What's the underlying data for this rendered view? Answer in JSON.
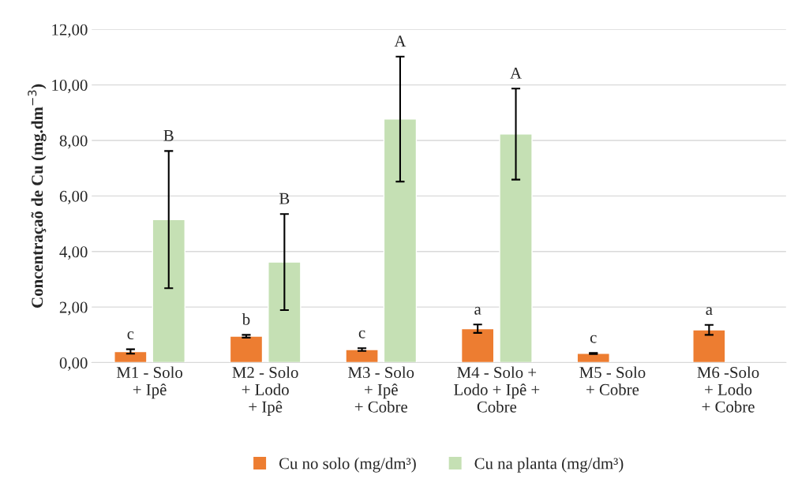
{
  "chart_data": {
    "type": "bar",
    "ylabel": "Concentraçaõ de Cu (mg.dm$^{−3}$)",
    "categories": [
      "M1 - Solo\n+ Ipê",
      "M2 - Solo\n+ Lodo\n+ Ipê",
      "M3 - Solo\n+ Ipê\n+ Cobre",
      "M4 - Solo +\nLodo + Ipê +\nCobre",
      "M5 - Solo\n+ Cobre",
      "M6 -Solo\n+ Lodo\n+ Cobre"
    ],
    "series": [
      {
        "name": "Cu no solo (mg/dm³)",
        "color": "#ed7d31",
        "values": [
          0.4,
          0.95,
          0.47,
          1.22,
          0.33,
          1.18
        ],
        "errors": [
          0.08,
          0.05,
          0.05,
          0.15,
          0.02,
          0.18
        ]
      },
      {
        "name": "Cu na planta (mg/dm³)",
        "color": "#c5e0b4",
        "values": [
          5.15,
          3.62,
          8.77,
          8.23,
          null,
          null
        ],
        "errors": [
          2.47,
          1.73,
          2.25,
          1.64,
          null,
          null
        ]
      }
    ],
    "annotations": [
      "c",
      "B",
      "b",
      "B",
      "c",
      "A",
      "a",
      "A",
      "c",
      "a"
    ],
    "ylim": [
      0,
      12
    ],
    "yticks": [
      {
        "value": 0,
        "label": "0,00"
      },
      {
        "value": 2,
        "label": "2,00"
      },
      {
        "value": 4,
        "label": "4,00"
      },
      {
        "value": 6,
        "label": "6,00"
      },
      {
        "value": 8,
        "label": "8,00"
      },
      {
        "value": 10,
        "label": "10,00"
      },
      {
        "value": 12,
        "label": "12,00"
      }
    ],
    "grid": "y",
    "legend": "bottom"
  }
}
